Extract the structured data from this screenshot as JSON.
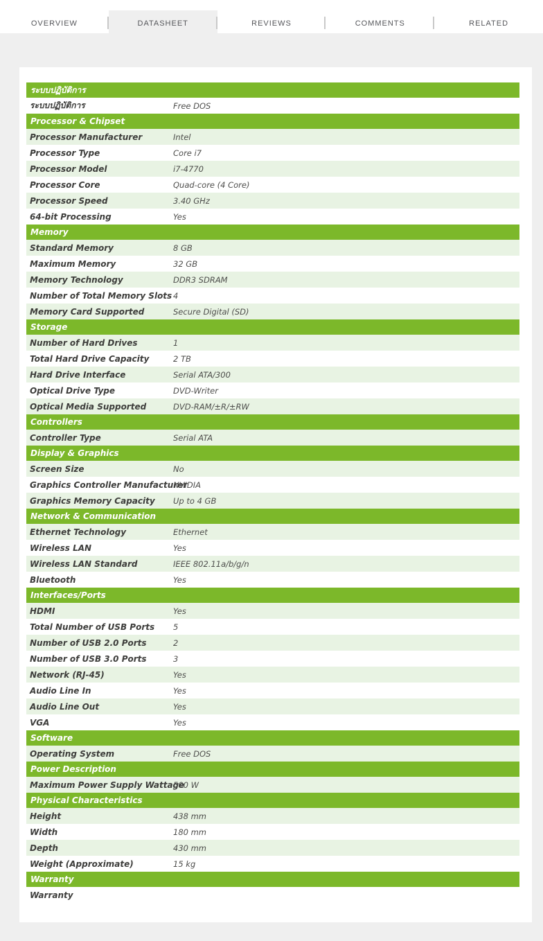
{
  "tabs": {
    "items": [
      {
        "label": "OVERVIEW",
        "active": false
      },
      {
        "label": "DATASHEET",
        "active": true
      },
      {
        "label": "REVIEWS",
        "active": false
      },
      {
        "label": "COMMENTS",
        "active": false
      },
      {
        "label": "RELATED",
        "active": false
      }
    ]
  },
  "colors": {
    "accent_green": "#7cb82a",
    "row_tint": "#e8f3e3",
    "page_background": "#efefef",
    "card_background": "#ffffff"
  },
  "datasheet": {
    "sections": [
      {
        "title": "ระบบปฏิบัติการ",
        "rows": [
          {
            "label": "ระบบปฏิบัติการ",
            "value": "Free DOS",
            "shaded": false
          }
        ]
      },
      {
        "title": "Processor & Chipset",
        "rows": [
          {
            "label": "Processor Manufacturer",
            "value": "Intel",
            "shaded": true
          },
          {
            "label": "Processor Type",
            "value": "Core i7",
            "shaded": false
          },
          {
            "label": "Processor Model",
            "value": "i7-4770",
            "shaded": true
          },
          {
            "label": "Processor Core",
            "value": "Quad-core (4 Core)",
            "shaded": false
          },
          {
            "label": "Processor Speed",
            "value": "3.40 GHz",
            "shaded": true
          },
          {
            "label": "64-bit Processing",
            "value": "Yes",
            "shaded": false
          }
        ]
      },
      {
        "title": "Memory",
        "rows": [
          {
            "label": "Standard Memory",
            "value": "8 GB",
            "shaded": true
          },
          {
            "label": "Maximum Memory",
            "value": "32 GB",
            "shaded": false
          },
          {
            "label": "Memory Technology",
            "value": "DDR3 SDRAM",
            "shaded": true
          },
          {
            "label": "Number of Total Memory Slots",
            "value": "4",
            "shaded": false
          },
          {
            "label": "Memory Card Supported",
            "value": "Secure Digital (SD)",
            "shaded": true
          }
        ]
      },
      {
        "title": "Storage",
        "rows": [
          {
            "label": "Number of Hard Drives",
            "value": "1",
            "shaded": true
          },
          {
            "label": "Total Hard Drive Capacity",
            "value": "2 TB",
            "shaded": false
          },
          {
            "label": "Hard Drive Interface",
            "value": "Serial ATA/300",
            "shaded": true
          },
          {
            "label": "Optical Drive Type",
            "value": "DVD-Writer",
            "shaded": false
          },
          {
            "label": "Optical Media Supported",
            "value": "DVD-RAM/±R/±RW",
            "shaded": true
          }
        ]
      },
      {
        "title": "Controllers",
        "rows": [
          {
            "label": "Controller Type",
            "value": "Serial ATA",
            "shaded": true
          }
        ]
      },
      {
        "title": "Display & Graphics",
        "rows": [
          {
            "label": "Screen Size",
            "value": "No",
            "shaded": true
          },
          {
            "label": "Graphics Controller Manufacturer",
            "value": "NVIDIA",
            "shaded": false
          },
          {
            "label": "Graphics Memory Capacity",
            "value": "Up to 4 GB",
            "shaded": true
          }
        ]
      },
      {
        "title": "Network & Communication",
        "rows": [
          {
            "label": "Ethernet Technology",
            "value": "Ethernet",
            "shaded": true
          },
          {
            "label": "Wireless LAN",
            "value": "Yes",
            "shaded": false
          },
          {
            "label": "Wireless LAN Standard",
            "value": "IEEE 802.11a/b/g/n",
            "shaded": true
          },
          {
            "label": "Bluetooth",
            "value": "Yes",
            "shaded": false
          }
        ]
      },
      {
        "title": "Interfaces/Ports",
        "rows": [
          {
            "label": "HDMI",
            "value": "Yes",
            "shaded": true
          },
          {
            "label": "Total Number of USB Ports",
            "value": "5",
            "shaded": false
          },
          {
            "label": "Number of USB 2.0 Ports",
            "value": "2",
            "shaded": true
          },
          {
            "label": "Number of USB 3.0 Ports",
            "value": "3",
            "shaded": false
          },
          {
            "label": "Network (RJ-45)",
            "value": "Yes",
            "shaded": true
          },
          {
            "label": "Audio Line In",
            "value": "Yes",
            "shaded": false
          },
          {
            "label": "Audio Line Out",
            "value": "Yes",
            "shaded": true
          },
          {
            "label": "VGA",
            "value": "Yes",
            "shaded": false
          }
        ]
      },
      {
        "title": "Software",
        "rows": [
          {
            "label": "Operating System",
            "value": "Free DOS",
            "shaded": true
          }
        ]
      },
      {
        "title": "Power Description",
        "rows": [
          {
            "label": "Maximum Power Supply Wattage",
            "value": "500 W",
            "shaded": true
          }
        ]
      },
      {
        "title": "Physical Characteristics",
        "rows": [
          {
            "label": "Height",
            "value": "438 mm",
            "shaded": true
          },
          {
            "label": "Width",
            "value": "180 mm",
            "shaded": false
          },
          {
            "label": "Depth",
            "value": "430 mm",
            "shaded": true
          },
          {
            "label": "Weight (Approximate)",
            "value": "15 kg",
            "shaded": false
          }
        ]
      },
      {
        "title": "Warranty",
        "rows": [
          {
            "label": "Warranty",
            "value": "",
            "shaded": false
          }
        ]
      }
    ]
  }
}
